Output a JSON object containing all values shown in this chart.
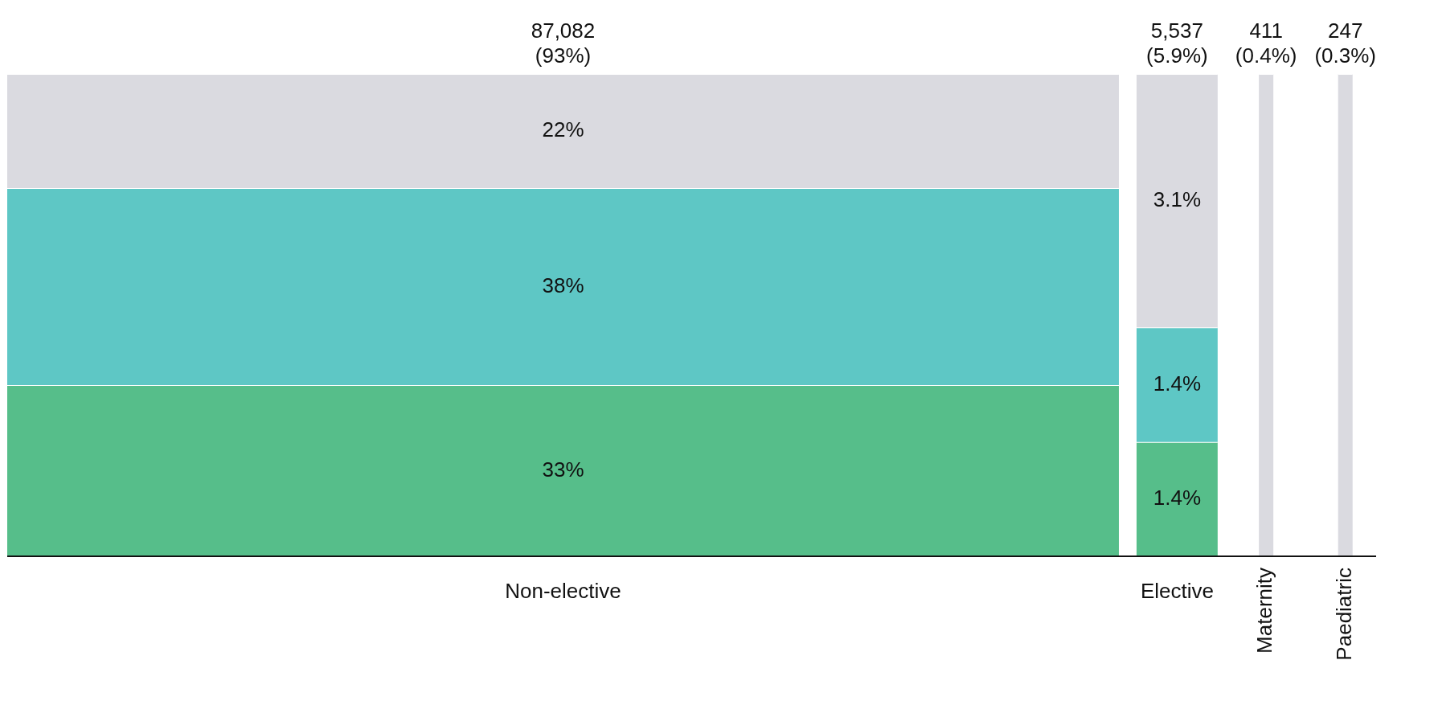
{
  "chart_data": {
    "type": "other",
    "categories": [
      "Non-elective",
      "Elective",
      "Maternity",
      "Paediatric"
    ],
    "series": [
      {
        "color": "#56be8a",
        "values": [
          33,
          1.4,
          null,
          null
        ],
        "value_labels": [
          "33%",
          "1.4%",
          null,
          null
        ]
      },
      {
        "color": "#5ec7c5",
        "values": [
          38,
          1.4,
          null,
          null
        ],
        "value_labels": [
          "38%",
          "1.4%",
          null,
          null
        ]
      },
      {
        "color": "#dadae0",
        "values": [
          22,
          3.1,
          0.4,
          0.3
        ],
        "value_labels": [
          "22%",
          "3.1%",
          "(0.4%)",
          "(0.3%)"
        ]
      }
    ],
    "totals": [
      "87,082\n(93%)",
      "5,537\n(5.9%)",
      "411",
      "247"
    ]
  }
}
